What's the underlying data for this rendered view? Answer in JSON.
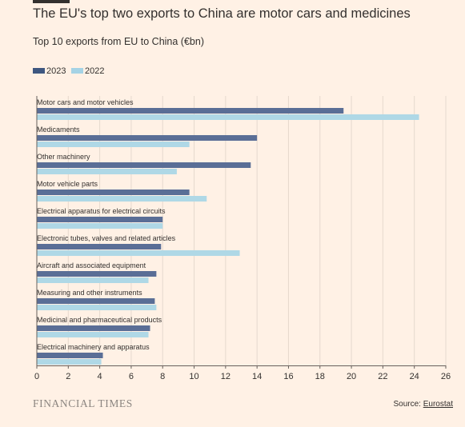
{
  "header": {
    "title": "The EU's top two exports to China are motor cars and medicines",
    "subtitle": "Top 10 exports from EU to China (€bn)"
  },
  "colors": {
    "background": "#FFF1E5",
    "series_2023": "#5A6E96",
    "series_2022": "#AFD8E6",
    "text": "#33302E",
    "gridline": "#E6D9CE",
    "axis": "#66605C"
  },
  "legend": {
    "items": [
      {
        "label": "2023",
        "color": "#3E5780"
      },
      {
        "label": "2022",
        "color": "#A5D3E5"
      }
    ]
  },
  "footer": {
    "brand": "FINANCIAL TIMES",
    "source_prefix": "Source: ",
    "source_link": "Eurostat"
  },
  "chart_data": {
    "type": "bar",
    "orientation": "horizontal",
    "title": "The EU's top two exports to China are motor cars and medicines",
    "subtitle": "Top 10 exports from EU to China (€bn)",
    "categories": [
      "Motor cars and motor vehicles",
      "Medicaments",
      "Other machinery",
      "Motor vehicle parts",
      "Electrical apparatus for electrical circuits",
      "Electronic tubes, valves and related articles",
      "Aircraft and associated equipment",
      "Measuring and other instruments",
      "Medicinal and pharmaceutical products",
      "Electrical machinery and apparatus"
    ],
    "series": [
      {
        "name": "2023",
        "values": [
          19.5,
          14.0,
          13.6,
          9.7,
          8.0,
          7.9,
          7.6,
          7.5,
          7.2,
          4.2
        ]
      },
      {
        "name": "2022",
        "values": [
          24.3,
          9.7,
          8.9,
          10.8,
          8.0,
          12.9,
          7.1,
          7.6,
          7.1,
          4.1
        ]
      }
    ],
    "x_ticks": [
      0,
      2,
      4,
      6,
      8,
      10,
      12,
      14,
      16,
      18,
      20,
      22,
      24,
      26
    ],
    "xlim": [
      0,
      26
    ],
    "grid": true,
    "legend_position": "top-left"
  }
}
